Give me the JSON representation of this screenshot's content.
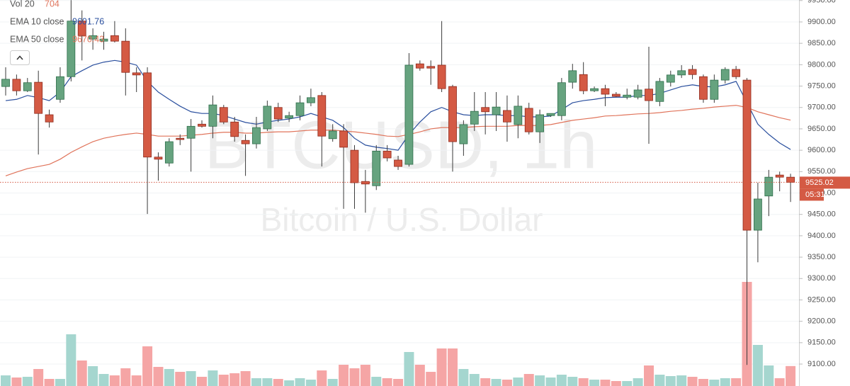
{
  "chart_data": {
    "type": "candlestick",
    "watermark": "BTCUSD, 1h",
    "subtitle": "Bitcoin / U.S. Dollar",
    "countdown": "05:31",
    "up_color": "#66a37f",
    "down_color": "#d45a44",
    "up_volume_color": "#a5d6cf",
    "down_volume_color": "#f5a5a5",
    "open": [
      9749,
      9766,
      9739,
      9759,
      9683,
      9719,
      9772,
      9902,
      9860,
      9855,
      9868,
      9855,
      9781,
      9781,
      9584,
      9570,
      9628,
      9628,
      9661,
      9656,
      9700,
      9666,
      9623,
      9615,
      9650,
      9700,
      9675,
      9681,
      9711,
      9728,
      9627,
      9645,
      9600,
      9527,
      9517,
      9598,
      9577,
      9567,
      9802,
      9796,
      9799,
      9749,
      9615,
      9661,
      9700,
      9683,
      9693,
      9660,
      9698,
      9643,
      9681,
      9681,
      9759,
      9777,
      9739,
      9744,
      9731,
      9724,
      9724,
      9743,
      9714,
      9759,
      9776,
      9789,
      9772,
      9719,
      9764,
      9789,
      9764,
      9413,
      9493,
      9542,
      9537
    ],
    "high": [
      9794,
      9777,
      9769,
      9786,
      9695,
      9794,
      9951,
      9927,
      9885,
      9877,
      9902,
      9885,
      9794,
      9794,
      9595,
      9628,
      9637,
      9673,
      9670,
      9728,
      9706,
      9678,
      9637,
      9678,
      9716,
      9711,
      9690,
      9728,
      9744,
      9736,
      9661,
      9661,
      9612,
      9554,
      9612,
      9612,
      9587,
      9827,
      9810,
      9810,
      9902,
      9753,
      9670,
      9736,
      9736,
      9736,
      9728,
      9728,
      9711,
      9695,
      9686,
      9769,
      9802,
      9806,
      9749,
      9753,
      9736,
      9744,
      9753,
      9842,
      9769,
      9786,
      9799,
      9799,
      9777,
      9777,
      9794,
      9797,
      9769,
      9524,
      9554,
      9550,
      9545
    ],
    "low": [
      9728,
      9728,
      9736,
      9590,
      9653,
      9711,
      9761,
      9810,
      9835,
      9835,
      9852,
      9728,
      9736,
      9451,
      9529,
      9562,
      9612,
      9550,
      9653,
      9628,
      9661,
      9620,
      9540,
      9604,
      9645,
      9666,
      9666,
      9670,
      9703,
      9562,
      9620,
      9463,
      9463,
      9454,
      9507,
      9574,
      9554,
      9562,
      9786,
      9753,
      9736,
      9550,
      9587,
      9645,
      9637,
      9645,
      9620,
      9628,
      9637,
      9617,
      9678,
      9670,
      9744,
      9731,
      9736,
      9703,
      9724,
      9719,
      9719,
      9615,
      9703,
      9749,
      9769,
      9766,
      9711,
      9711,
      9756,
      9766,
      9098,
      9338,
      9446,
      9504,
      9479
    ],
    "close": [
      9766,
      9739,
      9758,
      9686,
      9666,
      9772,
      9902,
      9868,
      9868,
      9860,
      9855,
      9782,
      9776,
      9584,
      9579,
      9620,
      9625,
      9656,
      9656,
      9706,
      9666,
      9632,
      9615,
      9653,
      9703,
      9673,
      9681,
      9711,
      9723,
      9633,
      9645,
      9607,
      9524,
      9521,
      9598,
      9582,
      9562,
      9799,
      9792,
      9792,
      9744,
      9620,
      9660,
      9691,
      9690,
      9701,
      9666,
      9703,
      9643,
      9683,
      9686,
      9758,
      9786,
      9739,
      9744,
      9731,
      9726,
      9729,
      9741,
      9716,
      9761,
      9776,
      9786,
      9777,
      9719,
      9764,
      9789,
      9772,
      9413,
      9486,
      9537,
      9537,
      9525.02
    ],
    "volume_name": "Vol 20",
    "volume": [
      375,
      300,
      325,
      600,
      250,
      250,
      1825,
      900,
      700,
      425,
      375,
      625,
      375,
      1400,
      675,
      600,
      500,
      525,
      325,
      550,
      400,
      450,
      525,
      275,
      275,
      250,
      200,
      275,
      225,
      550,
      250,
      750,
      625,
      750,
      325,
      275,
      250,
      1200,
      750,
      500,
      1325,
      1325,
      600,
      425,
      275,
      250,
      225,
      300,
      425,
      375,
      300,
      400,
      325,
      275,
      225,
      225,
      175,
      175,
      275,
      725,
      400,
      350,
      375,
      325,
      250,
      225,
      275,
      275,
      3675,
      1450,
      725,
      275,
      704
    ],
    "vlim": [
      0,
      4000
    ],
    "series": [
      {
        "name": "EMA 10 close",
        "color": "#2a4f9e",
        "values": [
          9716,
          9719,
          9728,
          9723,
          9716,
          9736,
          9772,
          9786,
          9799,
          9806,
          9810,
          9806,
          9799,
          9761,
          9736,
          9719,
          9703,
          9690,
          9686,
          9686,
          9681,
          9673,
          9665,
          9661,
          9666,
          9670,
          9673,
          9678,
          9686,
          9678,
          9670,
          9653,
          9628,
          9612,
          9607,
          9604,
          9600,
          9637,
          9666,
          9690,
          9700,
          9690,
          9683,
          9681,
          9683,
          9683,
          9681,
          9681,
          9678,
          9678,
          9680,
          9695,
          9711,
          9716,
          9719,
          9723,
          9724,
          9724,
          9728,
          9728,
          9733,
          9741,
          9749,
          9753,
          9749,
          9748,
          9753,
          9761,
          9711,
          9661,
          9637,
          9617,
          9601.76
        ]
      },
      {
        "name": "EMA 50 close",
        "color": "#e0735a",
        "values": [
          9540,
          9549,
          9557,
          9562,
          9567,
          9579,
          9595,
          9608,
          9620,
          9628,
          9633,
          9637,
          9640,
          9637,
          9633,
          9633,
          9633,
          9635,
          9637,
          9640,
          9642,
          9642,
          9640,
          9640,
          9642,
          9643,
          9643,
          9645,
          9647,
          9647,
          9647,
          9645,
          9643,
          9640,
          9637,
          9633,
          9632,
          9637,
          9643,
          9650,
          9653,
          9653,
          9653,
          9655,
          9656,
          9656,
          9656,
          9658,
          9658,
          9658,
          9660,
          9665,
          9670,
          9673,
          9676,
          9680,
          9681,
          9683,
          9685,
          9686,
          9688,
          9691,
          9693,
          9696,
          9698,
          9701,
          9703,
          9705,
          9700,
          9690,
          9683,
          9676,
          9670.43
        ]
      }
    ],
    "ylim": [
      9048.7,
      9951.3
    ],
    "yticks": [
      {
        "value": 9100,
        "label": "9100.00"
      },
      {
        "value": 9150,
        "label": "9150.00"
      },
      {
        "value": 9200,
        "label": "9200.00"
      },
      {
        "value": 9250,
        "label": "9250.00"
      },
      {
        "value": 9300,
        "label": "9300.00"
      },
      {
        "value": 9350,
        "label": "9350.00"
      },
      {
        "value": 9400,
        "label": "9400.00"
      },
      {
        "value": 9450,
        "label": "9450.00"
      },
      {
        "value": 9500,
        "label": "9500.00"
      },
      {
        "value": 9550,
        "label": "9550.00"
      },
      {
        "value": 9600,
        "label": "9600.00"
      },
      {
        "value": 9650,
        "label": "9650.00"
      },
      {
        "value": 9700,
        "label": "9700.00"
      },
      {
        "value": 9750,
        "label": "9750.00"
      },
      {
        "value": 9800,
        "label": "9800.00"
      },
      {
        "value": 9850,
        "label": "9850.00"
      },
      {
        "value": 9900,
        "label": "9900.00"
      },
      {
        "value": 9950,
        "label": "9950.00"
      }
    ],
    "grid": true
  }
}
